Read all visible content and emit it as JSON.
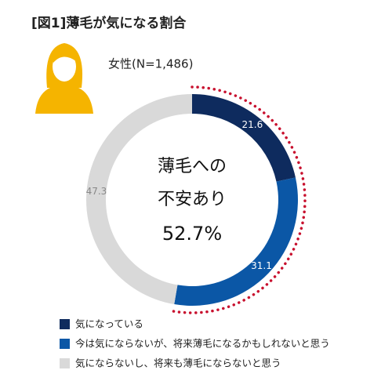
{
  "chart_data": {
    "type": "donut",
    "title": "[図1]薄毛が気になる割合",
    "subtitle": "女性(N=1,486)",
    "center_text": [
      "薄毛への",
      "不安あり",
      "52.7%"
    ],
    "series": [
      {
        "name": "気になっている",
        "color": "#0e2b5e",
        "value": 21.6
      },
      {
        "name": "今は気にならないが、将来薄毛になるかもしれないと思う",
        "color": "#0b57a6",
        "value": 31.1
      },
      {
        "name": "気にならないし、将来も薄毛にならないと思う",
        "color": "#d9d9d9",
        "value": 47.3
      }
    ]
  }
}
